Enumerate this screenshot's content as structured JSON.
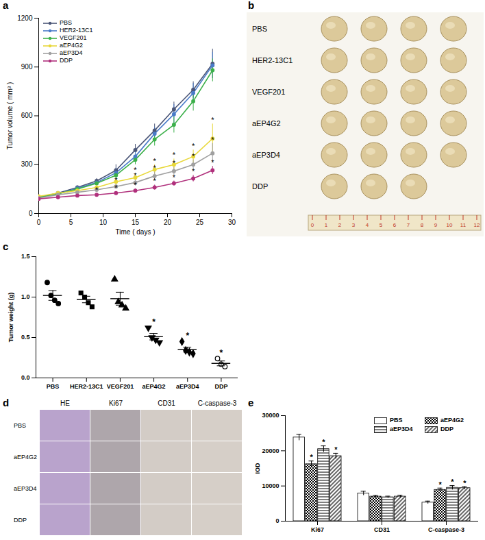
{
  "chart_data": [
    {
      "panel": "a",
      "type": "line",
      "x_label": "Time ( days )",
      "y_label": "Tumor volume ( mm³ )",
      "x": [
        0,
        3,
        6,
        9,
        12,
        15,
        18,
        21,
        24,
        27
      ],
      "xlim": [
        0,
        30
      ],
      "xticks": [
        0,
        5,
        10,
        15,
        20,
        25,
        30
      ],
      "ylim": [
        0,
        1200
      ],
      "yticks": [
        0,
        300,
        600,
        900,
        1200
      ],
      "legend": "top-left",
      "significance_mark": "*",
      "series": [
        {
          "name": "PBS",
          "color": "#4b5677",
          "marker": "circle",
          "values": [
            100,
            125,
            160,
            200,
            265,
            390,
            510,
            640,
            760,
            920
          ],
          "errors": [
            8,
            8,
            10,
            15,
            35,
            35,
            40,
            45,
            50,
            90
          ],
          "significant": [
            false,
            false,
            false,
            false,
            false,
            false,
            false,
            false,
            false,
            false
          ]
        },
        {
          "name": "HER2-13C1",
          "color": "#4a7cc9",
          "marker": "circle",
          "values": [
            100,
            120,
            155,
            190,
            250,
            350,
            490,
            610,
            740,
            910
          ],
          "errors": [
            8,
            8,
            10,
            12,
            30,
            35,
            40,
            60,
            60,
            80
          ],
          "significant": [
            false,
            false,
            false,
            false,
            false,
            false,
            false,
            false,
            false,
            false
          ]
        },
        {
          "name": "VEGF201",
          "color": "#3cb04a",
          "marker": "circle",
          "values": [
            100,
            120,
            150,
            185,
            235,
            330,
            455,
            545,
            690,
            880
          ],
          "errors": [
            8,
            8,
            10,
            12,
            25,
            30,
            40,
            50,
            60,
            70
          ],
          "significant": [
            false,
            false,
            false,
            false,
            false,
            false,
            false,
            false,
            false,
            false
          ]
        },
        {
          "name": "aEP4G2",
          "color": "#e8d83a",
          "marker": "circle",
          "values": [
            105,
            125,
            140,
            160,
            195,
            220,
            270,
            300,
            350,
            460
          ],
          "errors": [
            8,
            8,
            10,
            12,
            20,
            25,
            30,
            35,
            40,
            90
          ],
          "significant": [
            false,
            false,
            false,
            false,
            false,
            true,
            true,
            true,
            true,
            true
          ]
        },
        {
          "name": "aEP3D4",
          "color": "#a0a0a0",
          "marker": "circle",
          "values": [
            95,
            115,
            130,
            145,
            165,
            190,
            230,
            260,
            300,
            370
          ],
          "errors": [
            8,
            8,
            8,
            10,
            15,
            20,
            25,
            25,
            30,
            60
          ],
          "significant": [
            false,
            false,
            false,
            false,
            true,
            true,
            true,
            true,
            true,
            true
          ]
        },
        {
          "name": "DDP",
          "color": "#b0307c",
          "marker": "circle",
          "values": [
            90,
            100,
            110,
            115,
            125,
            140,
            160,
            185,
            215,
            265
          ],
          "errors": [
            6,
            6,
            8,
            8,
            10,
            12,
            15,
            15,
            20,
            25
          ],
          "significant": [
            false,
            false,
            false,
            true,
            true,
            true,
            true,
            true,
            true,
            true
          ]
        }
      ]
    },
    {
      "panel": "c",
      "type": "scatter",
      "y_label": "Tumor weight (g)",
      "color": "#000000",
      "ylim": [
        0,
        1.5
      ],
      "yticks": [
        {
          "value": 0,
          "label": "0.0"
        },
        {
          "value": 0.5,
          "label": "0.5"
        },
        {
          "value": 1,
          "label": "1.0"
        },
        {
          "value": 1.5,
          "label": "1.5"
        }
      ],
      "significance_mark": "*",
      "series": [
        {
          "name": "PBS",
          "marker": "circle",
          "values": [
            1.18,
            1.02,
            0.96,
            0.92
          ],
          "mean": 1.02,
          "sem": 0.06,
          "significant": false
        },
        {
          "name": "HER2-13C1",
          "marker": "square",
          "values": [
            1.05,
            1.0,
            0.93,
            0.88
          ],
          "mean": 0.97,
          "sem": 0.04,
          "significant": false
        },
        {
          "name": "VEGF201",
          "marker": "triangle",
          "values": [
            1.22,
            0.94,
            0.9,
            0.86
          ],
          "mean": 0.98,
          "sem": 0.08,
          "significant": false
        },
        {
          "name": "aEP4G2",
          "marker": "triangle-down",
          "values": [
            0.62,
            0.5,
            0.47,
            0.44
          ],
          "mean": 0.51,
          "sem": 0.04,
          "significant": true
        },
        {
          "name": "aEP3D4",
          "marker": "diamond",
          "values": [
            0.45,
            0.34,
            0.32,
            0.3
          ],
          "mean": 0.35,
          "sem": 0.03,
          "significant": true
        },
        {
          "name": "DDP",
          "marker": "circle-open",
          "values": [
            0.24,
            0.17,
            0.14
          ],
          "mean": 0.18,
          "sem": 0.03,
          "significant": true
        }
      ]
    },
    {
      "panel": "e",
      "type": "bar",
      "y_label": "IOD",
      "categories": [
        "Ki67",
        "CD31",
        "C-caspase-3"
      ],
      "ylim": [
        0,
        30000
      ],
      "yticks": [
        0,
        10000,
        20000,
        30000
      ],
      "legend": "top-right",
      "significance_mark": "*",
      "series": [
        {
          "name": "PBS",
          "color": "#ffffff",
          "values": [
            23800,
            7900,
            5300
          ],
          "errors": [
            900,
            600,
            400
          ],
          "significant": [
            false,
            false,
            false
          ]
        },
        {
          "name": "aEP4G2",
          "color": "#000000",
          "values": [
            16200,
            7000,
            8900
          ],
          "errors": [
            900,
            300,
            500
          ],
          "significant": [
            true,
            false,
            true
          ]
        },
        {
          "name": "aEP3D4",
          "color": "#000000",
          "values": [
            20500,
            6800,
            9500
          ],
          "errors": [
            900,
            300,
            600
          ],
          "significant": [
            true,
            false,
            true
          ]
        },
        {
          "name": "DDP",
          "color": "#000000",
          "values": [
            18500,
            7000,
            9400
          ],
          "errors": [
            800,
            400,
            400
          ],
          "significant": [
            true,
            false,
            true
          ]
        }
      ]
    }
  ],
  "images": [
    {
      "panel": "b",
      "type": "photo",
      "rows": [
        {
          "label": "PBS",
          "count": 4
        },
        {
          "label": "HER2-13C1",
          "count": 4
        },
        {
          "label": "VEGF201",
          "count": 4
        },
        {
          "label": "aEP4G2",
          "count": 4
        },
        {
          "label": "aEP3D4",
          "count": 4
        },
        {
          "label": "DDP",
          "count": 3
        }
      ],
      "ruler_labels": [
        "0",
        "1",
        "2",
        "3",
        "4",
        "5",
        "6",
        "7",
        "8",
        "9",
        "10",
        "11",
        "12"
      ]
    },
    {
      "panel": "d",
      "type": "photo",
      "columns": [
        "HE",
        "Ki67",
        "CD31",
        "C-caspase-3"
      ],
      "rows": [
        "PBS",
        "aEP4G2",
        "aEP3D4",
        "DDP"
      ]
    }
  ]
}
